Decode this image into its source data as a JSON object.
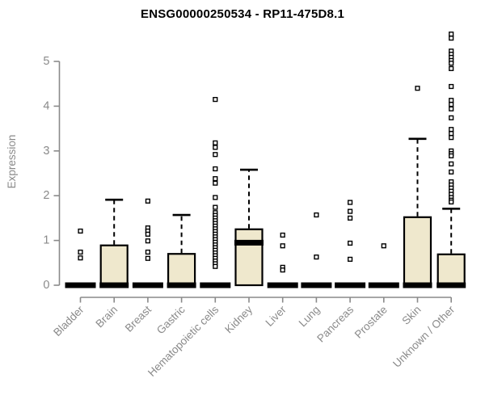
{
  "chart_data": {
    "type": "boxplot",
    "title": "ENSG00000250534 - RP11-475D8.1",
    "ylabel": "Expression",
    "ylim": [
      0,
      5.7
    ],
    "yticks": [
      0,
      1,
      2,
      3,
      4,
      5
    ],
    "grid": false,
    "legend": "none",
    "box_fill_color": "#EFE8CD",
    "box_stroke_color": "#000000",
    "axis_color": "#8a8a8a",
    "categories": [
      "Bladder",
      "Brain",
      "Breast",
      "Gastric",
      "Hematopoietic cells",
      "Kidney",
      "Liver",
      "Lung",
      "Pancreas",
      "Prostate",
      "Skin",
      "Unknown / Other"
    ],
    "boxes": [
      {
        "label": "Bladder",
        "q1": 0,
        "median": 0,
        "q3": 0,
        "whisker_low": 0,
        "whisker_high": 0,
        "outliers": [
          1.21,
          0.74,
          0.61
        ]
      },
      {
        "label": "Brain",
        "q1": 0,
        "median": 0,
        "q3": 0.89,
        "whisker_low": 0,
        "whisker_high": 1.91,
        "outliers": []
      },
      {
        "label": "Breast",
        "q1": 0,
        "median": 0,
        "q3": 0,
        "whisker_low": 0,
        "whisker_high": 0,
        "outliers": [
          1.88,
          1.28,
          1.21,
          1.14,
          0.99,
          0.74,
          0.6
        ]
      },
      {
        "label": "Gastric",
        "q1": 0,
        "median": 0,
        "q3": 0.7,
        "whisker_low": 0,
        "whisker_high": 1.57,
        "outliers": []
      },
      {
        "label": "Hematopoietic cells",
        "q1": 0,
        "median": 0,
        "q3": 0,
        "whisker_low": 0,
        "whisker_high": 0,
        "outliers": [
          4.15,
          3.18,
          3.08,
          2.92,
          2.6,
          2.38,
          2.28,
          1.96,
          1.74,
          1.62,
          1.56,
          1.5,
          1.44,
          1.38,
          1.32,
          1.26,
          1.2,
          1.14,
          1.08,
          1.02,
          0.96,
          0.9,
          0.84,
          0.78,
          0.72,
          0.66,
          0.6,
          0.54,
          0.48,
          0.42
        ]
      },
      {
        "label": "Kidney",
        "q1": 0,
        "median": 0.95,
        "q3": 1.25,
        "whisker_low": 0,
        "whisker_high": 2.58,
        "outliers": []
      },
      {
        "label": "Liver",
        "q1": 0,
        "median": 0,
        "q3": 0,
        "whisker_low": 0,
        "whisker_high": 0,
        "outliers": [
          1.12,
          0.88,
          0.4,
          0.34
        ]
      },
      {
        "label": "Lung",
        "q1": 0,
        "median": 0,
        "q3": 0,
        "whisker_low": 0,
        "whisker_high": 0,
        "outliers": [
          1.57,
          0.63
        ]
      },
      {
        "label": "Pancreas",
        "q1": 0,
        "median": 0,
        "q3": 0,
        "whisker_low": 0,
        "whisker_high": 0,
        "outliers": [
          1.85,
          1.65,
          1.5,
          0.94,
          0.58
        ]
      },
      {
        "label": "Prostate",
        "q1": 0,
        "median": 0,
        "q3": 0,
        "whisker_low": 0,
        "whisker_high": 0,
        "outliers": [
          0.88
        ]
      },
      {
        "label": "Skin",
        "q1": 0,
        "median": 0,
        "q3": 1.52,
        "whisker_low": 0,
        "whisker_high": 3.27,
        "outliers": [
          4.4
        ]
      },
      {
        "label": "Unknown / Other",
        "q1": 0,
        "median": 0,
        "q3": 0.69,
        "whisker_low": 0,
        "whisker_high": 1.71,
        "outliers": [
          5.61,
          5.52,
          5.23,
          5.16,
          5.09,
          5.02,
          4.96,
          4.84,
          4.44,
          4.13,
          4.04,
          3.94,
          3.74,
          3.48,
          3.39,
          3.3,
          3.0,
          2.94,
          2.89,
          2.71,
          2.53,
          2.31,
          2.24,
          2.17,
          2.1,
          2.03,
          1.96,
          1.9,
          1.86
        ]
      }
    ]
  }
}
